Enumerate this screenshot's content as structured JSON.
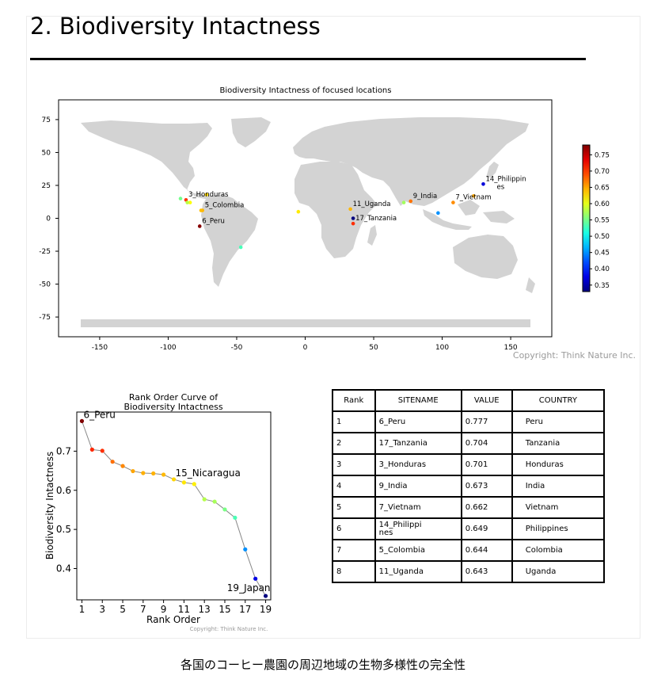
{
  "page": {
    "heading": "2. Biodiversity Intactness",
    "caption": "各国のコーヒー農園の周辺地域の生物多様性の完全性"
  },
  "chart_data": [
    {
      "type": "scatter",
      "title": "Biodiversity Intactness of focused locations",
      "xlim": [
        -180,
        180
      ],
      "ylim": [
        -90,
        90
      ],
      "xticks": [
        -150,
        -100,
        -50,
        0,
        50,
        100,
        150
      ],
      "yticks": [
        75,
        50,
        25,
        0,
        -25,
        -50,
        -75
      ],
      "colorbar": {
        "ticks": [
          "0.75",
          "0.70",
          "0.65",
          "0.60",
          "0.55",
          "0.50",
          "0.45",
          "0.40",
          "0.35"
        ],
        "range": [
          0.33,
          0.78
        ],
        "colormap": "jet"
      },
      "copyright": "Copyright: Think Nature Inc.",
      "points": [
        {
          "lon": -77,
          "lat": -6,
          "value": 0.777,
          "label": "6_Peru"
        },
        {
          "lon": 35,
          "lat": -4,
          "value": 0.704,
          "label": "17_Tanzania"
        },
        {
          "lon": -87,
          "lat": 14,
          "value": 0.701,
          "label": "3_Honduras"
        },
        {
          "lon": 77,
          "lat": 13,
          "value": 0.673,
          "label": "9_India"
        },
        {
          "lon": 108,
          "lat": 12,
          "value": 0.662,
          "label": "7_Vietnam"
        },
        {
          "lon": 123,
          "lat": 17,
          "value": 0.649,
          "label": ""
        },
        {
          "lon": -75,
          "lat": 6,
          "value": 0.644,
          "label": "5_Colombia"
        },
        {
          "lon": 33,
          "lat": 7,
          "value": 0.643,
          "label": "11_Uganda"
        },
        {
          "lon": -76,
          "lat": 6,
          "value": 0.64,
          "label": ""
        },
        {
          "lon": -72,
          "lat": 18,
          "value": 0.63,
          "label": ""
        },
        {
          "lon": -5,
          "lat": 5,
          "value": 0.62,
          "label": ""
        },
        {
          "lon": -84,
          "lat": 12,
          "value": 0.61,
          "label": ""
        },
        {
          "lon": -86,
          "lat": 12,
          "value": 0.58,
          "label": ""
        },
        {
          "lon": 72,
          "lat": 12,
          "value": 0.57,
          "label": ""
        },
        {
          "lon": -91,
          "lat": 15,
          "value": 0.55,
          "label": ""
        },
        {
          "lon": -47,
          "lat": -22,
          "value": 0.53,
          "label": ""
        },
        {
          "lon": 97,
          "lat": 4,
          "value": 0.45,
          "label": ""
        },
        {
          "lon": 130,
          "lat": 26,
          "value": 0.37,
          "label": "14_Philippin\nes"
        },
        {
          "lon": 35,
          "lat": 0,
          "value": 0.33,
          "label": ""
        }
      ]
    },
    {
      "type": "line",
      "title": "Rank Order Curve of\nBiodiversity Intactness",
      "xlabel": "Rank Order",
      "ylabel": "Biodiversity Intactness",
      "xticks": [
        1,
        3,
        5,
        7,
        9,
        11,
        13,
        15,
        17,
        19
      ],
      "yticks": [
        "0.7",
        "0.6",
        "0.5",
        "0.4"
      ],
      "xlim": [
        0.5,
        19.5
      ],
      "ylim": [
        0.32,
        0.8
      ],
      "copyright": "Copyright: Think Nature Inc.",
      "x": [
        1,
        2,
        3,
        4,
        5,
        6,
        7,
        8,
        9,
        10,
        11,
        12,
        13,
        14,
        15,
        16,
        17,
        18,
        19
      ],
      "y": [
        0.777,
        0.704,
        0.701,
        0.673,
        0.662,
        0.649,
        0.644,
        0.643,
        0.64,
        0.628,
        0.62,
        0.616,
        0.577,
        0.571,
        0.551,
        0.53,
        0.449,
        0.374,
        0.33
      ],
      "annotations": [
        {
          "rank": 1,
          "text": "6_Peru"
        },
        {
          "rank": 10,
          "text": "15_Nicaragua"
        },
        {
          "rank": 19,
          "text": "19_Japan"
        }
      ]
    },
    {
      "type": "table",
      "columns": [
        "Rank",
        "SITENAME",
        "VALUE",
        "COUNTRY"
      ],
      "rows": [
        [
          "1",
          "6_Peru",
          "0.777",
          "Peru"
        ],
        [
          "2",
          "17_Tanzania",
          "0.704",
          "Tanzania"
        ],
        [
          "3",
          "3_Honduras",
          "0.701",
          "Honduras"
        ],
        [
          "4",
          "9_India",
          "0.673",
          "India"
        ],
        [
          "5",
          "7_Vietnam",
          "0.662",
          "Vietnam"
        ],
        [
          "6",
          "14_Philippi\nnes",
          "0.649",
          "Philippines"
        ],
        [
          "7",
          "5_Colombia",
          "0.644",
          "Colombia"
        ],
        [
          "8",
          "11_Uganda",
          "0.643",
          "Uganda"
        ]
      ]
    }
  ]
}
